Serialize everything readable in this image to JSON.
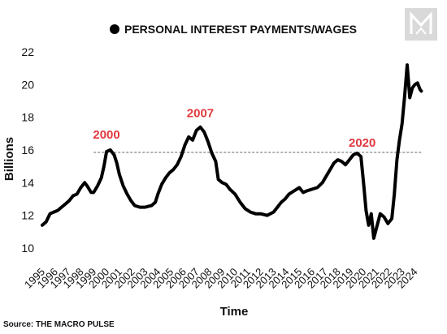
{
  "source_text": "Source: THE MACRO PULSE",
  "chart_data": {
    "type": "line",
    "legend": {
      "label": "PERSONAL INTEREST PAYMENTS/WAGES",
      "placement": "top-center"
    },
    "xlabel": "Time",
    "ylabel": "Billions",
    "xlim": [
      1995,
      2024.6
    ],
    "ylim": [
      10,
      22
    ],
    "yticks": [
      10,
      12,
      14,
      16,
      18,
      20,
      22
    ],
    "xticks": [
      "1995",
      "1996",
      "1997",
      "1998",
      "1999",
      "2000",
      "2001",
      "2002",
      "2003",
      "2004",
      "2005",
      "2006",
      "2007",
      "2008",
      "2009",
      "2010",
      "2011",
      "2012",
      "2013",
      "2014",
      "2015",
      "2016",
      "2017",
      "2018",
      "2019",
      "2020",
      "2021",
      "2022",
      "2023",
      "2024"
    ],
    "grid": false,
    "reference_line": {
      "y": 15.85,
      "style": "dashed"
    },
    "annotations": [
      {
        "text": "2000",
        "x": 2000,
        "y": 16.7,
        "color": "#e0393e"
      },
      {
        "text": "2007",
        "x": 2007.3,
        "y": 18.0,
        "color": "#e0393e"
      },
      {
        "text": "2020",
        "x": 2019.9,
        "y": 16.2,
        "color": "#e0393e"
      }
    ],
    "series": [
      {
        "color": "#000000",
        "points": [
          [
            1995.0,
            11.4
          ],
          [
            1995.3,
            11.6
          ],
          [
            1995.6,
            12.1
          ],
          [
            1995.9,
            12.2
          ],
          [
            1996.2,
            12.3
          ],
          [
            1996.5,
            12.5
          ],
          [
            1996.8,
            12.7
          ],
          [
            1997.1,
            12.9
          ],
          [
            1997.4,
            13.2
          ],
          [
            1997.7,
            13.3
          ],
          [
            1998.0,
            13.7
          ],
          [
            1998.3,
            14.0
          ],
          [
            1998.5,
            13.8
          ],
          [
            1998.8,
            13.4
          ],
          [
            1999.0,
            13.4
          ],
          [
            1999.3,
            13.8
          ],
          [
            1999.6,
            14.3
          ],
          [
            1999.8,
            15.0
          ],
          [
            2000.0,
            15.9
          ],
          [
            2000.3,
            16.0
          ],
          [
            2000.6,
            15.7
          ],
          [
            2000.8,
            15.2
          ],
          [
            2001.0,
            14.5
          ],
          [
            2001.3,
            13.8
          ],
          [
            2001.6,
            13.3
          ],
          [
            2001.9,
            12.9
          ],
          [
            2002.2,
            12.6
          ],
          [
            2002.6,
            12.5
          ],
          [
            2003.0,
            12.5
          ],
          [
            2003.5,
            12.6
          ],
          [
            2003.8,
            12.8
          ],
          [
            2004.0,
            13.3
          ],
          [
            2004.3,
            13.9
          ],
          [
            2004.6,
            14.3
          ],
          [
            2004.9,
            14.6
          ],
          [
            2005.2,
            14.8
          ],
          [
            2005.5,
            15.1
          ],
          [
            2005.8,
            15.6
          ],
          [
            2006.1,
            16.3
          ],
          [
            2006.4,
            16.8
          ],
          [
            2006.7,
            16.6
          ],
          [
            2007.0,
            17.2
          ],
          [
            2007.3,
            17.4
          ],
          [
            2007.6,
            17.1
          ],
          [
            2007.9,
            16.5
          ],
          [
            2008.2,
            15.8
          ],
          [
            2008.5,
            15.3
          ],
          [
            2008.7,
            14.2
          ],
          [
            2009.0,
            14.0
          ],
          [
            2009.3,
            13.9
          ],
          [
            2009.6,
            13.6
          ],
          [
            2010.0,
            13.3
          ],
          [
            2010.4,
            12.8
          ],
          [
            2010.8,
            12.4
          ],
          [
            2011.2,
            12.2
          ],
          [
            2011.6,
            12.1
          ],
          [
            2012.0,
            12.1
          ],
          [
            2012.5,
            12.0
          ],
          [
            2013.0,
            12.2
          ],
          [
            2013.3,
            12.5
          ],
          [
            2013.6,
            12.8
          ],
          [
            2013.9,
            13.0
          ],
          [
            2014.2,
            13.3
          ],
          [
            2014.6,
            13.5
          ],
          [
            2015.0,
            13.7
          ],
          [
            2015.3,
            13.4
          ],
          [
            2015.6,
            13.5
          ],
          [
            2016.0,
            13.6
          ],
          [
            2016.4,
            13.7
          ],
          [
            2016.8,
            14.0
          ],
          [
            2017.1,
            14.4
          ],
          [
            2017.4,
            14.8
          ],
          [
            2017.7,
            15.2
          ],
          [
            2018.0,
            15.4
          ],
          [
            2018.3,
            15.3
          ],
          [
            2018.6,
            15.1
          ],
          [
            2018.9,
            15.4
          ],
          [
            2019.2,
            15.7
          ],
          [
            2019.5,
            15.8
          ],
          [
            2019.8,
            15.6
          ],
          [
            2020.0,
            14.0
          ],
          [
            2020.2,
            12.3
          ],
          [
            2020.4,
            11.4
          ],
          [
            2020.6,
            12.1
          ],
          [
            2020.8,
            10.6
          ],
          [
            2021.0,
            11.2
          ],
          [
            2021.3,
            12.1
          ],
          [
            2021.6,
            11.9
          ],
          [
            2021.9,
            11.5
          ],
          [
            2022.2,
            11.8
          ],
          [
            2022.4,
            13.3
          ],
          [
            2022.6,
            15.4
          ],
          [
            2022.8,
            16.6
          ],
          [
            2023.0,
            17.6
          ],
          [
            2023.2,
            19.3
          ],
          [
            2023.4,
            21.2
          ],
          [
            2023.6,
            19.2
          ],
          [
            2023.8,
            19.8
          ],
          [
            2024.0,
            20.0
          ],
          [
            2024.2,
            20.1
          ],
          [
            2024.4,
            19.7
          ],
          [
            2024.5,
            19.6
          ]
        ]
      }
    ]
  }
}
